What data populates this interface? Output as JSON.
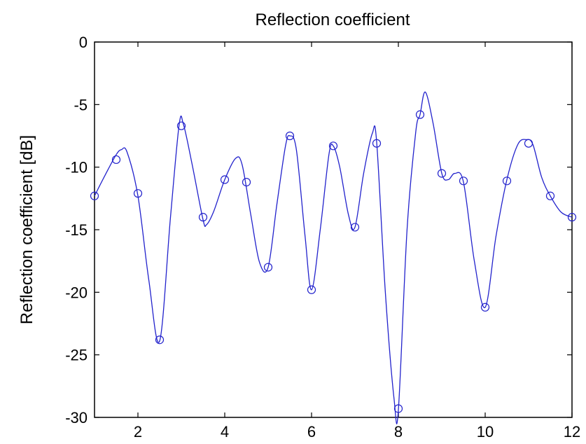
{
  "chart_data": {
    "type": "line",
    "title": "Reflection coefficient",
    "xlabel": "",
    "ylabel": "Reflection coefficient  [dB]",
    "xlim": [
      1,
      12
    ],
    "ylim": [
      -30,
      0
    ],
    "x_ticks": [
      2,
      4,
      6,
      8,
      10,
      12
    ],
    "y_ticks": [
      0,
      -5,
      -10,
      -15,
      -20,
      -25,
      -30
    ],
    "grid": false,
    "series": [
      {
        "color": "#2222cc",
        "line_style": "solid",
        "x": [
          1.0,
          1.25,
          1.5,
          1.62,
          1.75,
          2.0,
          2.25,
          2.5,
          2.75,
          2.95,
          3.05,
          3.25,
          3.5,
          3.58,
          3.75,
          4.0,
          4.25,
          4.4,
          4.6,
          4.8,
          5.0,
          5.2,
          5.4,
          5.5,
          5.65,
          5.85,
          6.0,
          6.2,
          6.4,
          6.5,
          6.65,
          6.85,
          7.0,
          7.2,
          7.4,
          7.5,
          7.7,
          7.9,
          8.0,
          8.2,
          8.4,
          8.5,
          8.62,
          8.8,
          9.0,
          9.15,
          9.3,
          9.5,
          9.75,
          10.0,
          10.25,
          10.5,
          10.75,
          10.95,
          11.1,
          11.3,
          11.5,
          11.75,
          12.0
        ],
        "values": [
          -12.3,
          -10.6,
          -9.0,
          -8.6,
          -8.8,
          -12.3,
          -19.0,
          -23.9,
          -14.0,
          -6.6,
          -6.6,
          -9.8,
          -14.2,
          -14.6,
          -13.5,
          -11.0,
          -9.3,
          -9.8,
          -13.8,
          -17.6,
          -18.0,
          -13.0,
          -8.3,
          -7.5,
          -8.6,
          -15.5,
          -19.8,
          -15.0,
          -9.0,
          -8.3,
          -10.0,
          -13.8,
          -14.8,
          -10.5,
          -7.3,
          -8.0,
          -20.0,
          -28.5,
          -29.4,
          -15.0,
          -7.2,
          -5.8,
          -4.0,
          -6.5,
          -10.5,
          -11.0,
          -10.5,
          -11.2,
          -17.5,
          -21.2,
          -15.5,
          -11.0,
          -8.2,
          -7.8,
          -8.2,
          -10.8,
          -12.3,
          -13.6,
          -14.0
        ]
      },
      {
        "color": "#2222cc",
        "marker": "o",
        "line_style": "none",
        "x": [
          1.0,
          1.5,
          2.0,
          2.5,
          3.0,
          3.5,
          4.0,
          4.5,
          5.0,
          5.5,
          6.0,
          6.5,
          7.0,
          7.5,
          8.0,
          8.5,
          9.0,
          9.5,
          10.0,
          10.5,
          11.0,
          11.5,
          12.0
        ],
        "values": [
          -12.3,
          -9.4,
          -12.1,
          -23.8,
          -6.7,
          -14.0,
          -11.0,
          -11.2,
          -18.0,
          -7.5,
          -19.8,
          -8.3,
          -14.8,
          -8.1,
          -29.3,
          -5.8,
          -10.5,
          -11.1,
          -21.2,
          -11.1,
          -8.1,
          -12.3,
          -14.0
        ]
      }
    ]
  }
}
